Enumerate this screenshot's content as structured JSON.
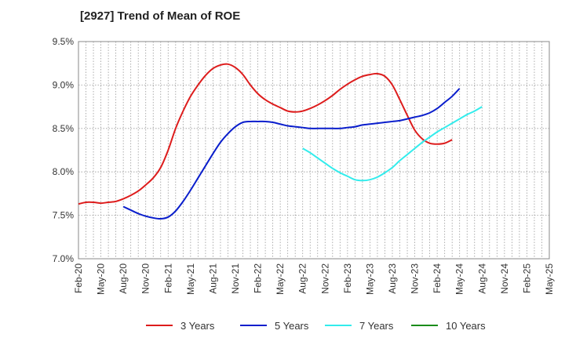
{
  "chart_data": {
    "type": "line",
    "title": "[2927]  Trend of Mean of ROE",
    "xlabel": "",
    "ylabel": "",
    "ylim": [
      7.0,
      9.5
    ],
    "yticks": [
      "7.0%",
      "7.5%",
      "8.0%",
      "8.5%",
      "9.0%",
      "9.5%"
    ],
    "x_ticks": [
      "Feb-20",
      "May-20",
      "Aug-20",
      "Nov-20",
      "Feb-21",
      "May-21",
      "Aug-21",
      "Nov-21",
      "Feb-22",
      "May-22",
      "Aug-22",
      "Nov-22",
      "Feb-23",
      "May-23",
      "Aug-23",
      "Nov-23",
      "Feb-24",
      "May-24",
      "Aug-24",
      "Nov-24",
      "Feb-25",
      "May-25"
    ],
    "grid": true,
    "legend_position": "bottom",
    "series": [
      {
        "name": "3 Years",
        "color": "#dd1c1c",
        "start": "Feb-20",
        "values": [
          7.63,
          7.65,
          7.65,
          7.64,
          7.65,
          7.66,
          7.69,
          7.73,
          7.78,
          7.85,
          7.93,
          8.05,
          8.25,
          8.5,
          8.7,
          8.87,
          9.0,
          9.11,
          9.19,
          9.23,
          9.24,
          9.2,
          9.12,
          9.0,
          8.9,
          8.83,
          8.78,
          8.74,
          8.7,
          8.69,
          8.7,
          8.73,
          8.77,
          8.82,
          8.88,
          8.95,
          9.01,
          9.06,
          9.1,
          9.12,
          9.13,
          9.1,
          9.0,
          8.83,
          8.65,
          8.48,
          8.38,
          8.33,
          8.32,
          8.33,
          8.37
        ]
      },
      {
        "name": "5 Years",
        "color": "#0a1ecc",
        "start": "Aug-20",
        "values": [
          7.6,
          7.56,
          7.52,
          7.49,
          7.47,
          7.46,
          7.48,
          7.55,
          7.66,
          7.79,
          7.93,
          8.07,
          8.21,
          8.34,
          8.44,
          8.52,
          8.57,
          8.58,
          8.58,
          8.58,
          8.57,
          8.55,
          8.53,
          8.52,
          8.51,
          8.5,
          8.5,
          8.5,
          8.5,
          8.5,
          8.51,
          8.52,
          8.54,
          8.55,
          8.56,
          8.57,
          8.58,
          8.59,
          8.61,
          8.63,
          8.65,
          8.68,
          8.73,
          8.8,
          8.87,
          8.96
        ]
      },
      {
        "name": "7 Years",
        "color": "#33ecec",
        "start": "Aug-22",
        "values": [
          8.27,
          8.22,
          8.16,
          8.1,
          8.04,
          7.99,
          7.95,
          7.91,
          7.9,
          7.91,
          7.94,
          7.99,
          8.05,
          8.13,
          8.2,
          8.27,
          8.34,
          8.4,
          8.46,
          8.51,
          8.56,
          8.61,
          8.66,
          8.7,
          8.75
        ]
      },
      {
        "name": "10 Years",
        "color": "#1a8c1a",
        "start": "",
        "values": []
      }
    ]
  }
}
